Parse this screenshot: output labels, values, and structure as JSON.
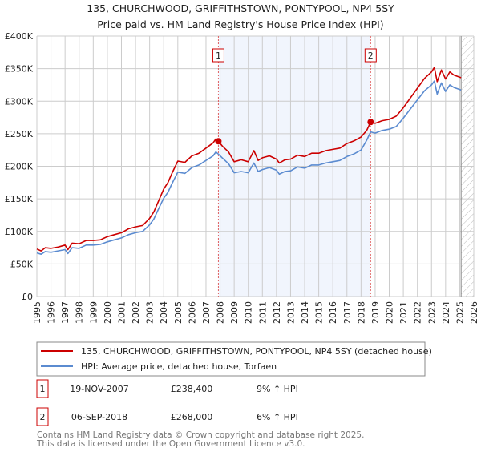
{
  "chart_data": {
    "type": "line",
    "title": "135, CHURCHWOOD, GRIFFITHSTOWN, PONTYPOOL, NP4 5SY",
    "subtitle": "Price paid vs. HM Land Registry's House Price Index (HPI)",
    "xlabel": "",
    "ylabel": "",
    "xlim": [
      1995,
      2026
    ],
    "ylim": [
      0,
      400000
    ],
    "grid": true,
    "y_ticks": [
      {
        "value": 0,
        "label": "£0"
      },
      {
        "value": 50000,
        "label": "£50K"
      },
      {
        "value": 100000,
        "label": "£100K"
      },
      {
        "value": 150000,
        "label": "£150K"
      },
      {
        "value": 200000,
        "label": "£200K"
      },
      {
        "value": 250000,
        "label": "£250K"
      },
      {
        "value": 300000,
        "label": "£300K"
      },
      {
        "value": 350000,
        "label": "£350K"
      },
      {
        "value": 400000,
        "label": "£400K"
      }
    ],
    "x_ticks": [
      "1995",
      "1996",
      "1997",
      "1998",
      "1999",
      "2000",
      "2001",
      "2002",
      "2003",
      "2004",
      "2005",
      "2006",
      "2007",
      "2008",
      "2009",
      "2010",
      "2011",
      "2012",
      "2013",
      "2014",
      "2015",
      "2016",
      "2017",
      "2018",
      "2019",
      "2020",
      "2021",
      "2022",
      "2023",
      "2024",
      "2025",
      "2026"
    ],
    "shaded_range": [
      2007.88,
      2018.68
    ],
    "forecast_hatch_from": 2025.1,
    "series": [
      {
        "name": "135, CHURCHWOOD, GRIFFITHSTOWN, PONTYPOOL, NP4 5SY (detached house)",
        "color": "#cc0000",
        "x": [
          1995,
          1995.3,
          1995.6,
          1996,
          1996.5,
          1997,
          1997.2,
          1997.5,
          1998,
          1998.5,
          1999,
          1999.5,
          2000,
          2000.5,
          2001,
          2001.5,
          2002,
          2002.5,
          2003,
          2003.3,
          2003.6,
          2004,
          2004.3,
          2004.6,
          2005,
          2005.5,
          2006,
          2006.5,
          2007,
          2007.5,
          2007.7,
          2007.88,
          2008.2,
          2008.6,
          2009,
          2009.5,
          2010,
          2010.4,
          2010.7,
          2011,
          2011.5,
          2012,
          2012.2,
          2012.6,
          2013,
          2013.5,
          2014,
          2014.5,
          2015,
          2015.5,
          2016,
          2016.5,
          2017,
          2017.5,
          2018,
          2018.4,
          2018.68,
          2019,
          2019.5,
          2020,
          2020.5,
          2021,
          2021.5,
          2022,
          2022.5,
          2023,
          2023.2,
          2023.4,
          2023.7,
          2024,
          2024.3,
          2024.6,
          2025,
          2025.1
        ],
        "y": [
          73000,
          70000,
          75000,
          74000,
          76000,
          79000,
          72000,
          82000,
          81000,
          86000,
          86000,
          87000,
          92000,
          95000,
          98000,
          104000,
          107000,
          109000,
          120000,
          130000,
          145000,
          165000,
          175000,
          190000,
          208000,
          206000,
          216000,
          220000,
          228000,
          236000,
          242000,
          238400,
          230000,
          222000,
          207000,
          210000,
          207000,
          224000,
          209000,
          213000,
          216000,
          211000,
          205000,
          210000,
          211000,
          217000,
          215000,
          220000,
          220000,
          224000,
          226000,
          228000,
          235000,
          239000,
          245000,
          255000,
          268000,
          266000,
          270000,
          272000,
          277000,
          290000,
          305000,
          320000,
          335000,
          345000,
          352000,
          330000,
          348000,
          334000,
          345000,
          340000,
          337000,
          336000
        ]
      },
      {
        "name": "HPI: Average price, detached house, Torfaen",
        "color": "#5b8bd0",
        "x": [
          1995,
          1995.3,
          1995.6,
          1996,
          1996.5,
          1997,
          1997.2,
          1997.5,
          1998,
          1998.5,
          1999,
          1999.5,
          2000,
          2000.5,
          2001,
          2001.5,
          2002,
          2002.5,
          2003,
          2003.3,
          2003.6,
          2004,
          2004.3,
          2004.6,
          2005,
          2005.5,
          2006,
          2006.5,
          2007,
          2007.5,
          2007.7,
          2007.88,
          2008.2,
          2008.6,
          2009,
          2009.5,
          2010,
          2010.4,
          2010.7,
          2011,
          2011.5,
          2012,
          2012.2,
          2012.6,
          2013,
          2013.5,
          2014,
          2014.5,
          2015,
          2015.5,
          2016,
          2016.5,
          2017,
          2017.5,
          2018,
          2018.4,
          2018.68,
          2019,
          2019.5,
          2020,
          2020.5,
          2021,
          2021.5,
          2022,
          2022.5,
          2023,
          2023.2,
          2023.4,
          2023.7,
          2024,
          2024.3,
          2024.6,
          2025,
          2025.1
        ],
        "y": [
          67000,
          65000,
          69000,
          68000,
          70000,
          72000,
          66000,
          75000,
          74000,
          79000,
          79000,
          80000,
          84000,
          87000,
          90000,
          95000,
          98000,
          100000,
          110000,
          119000,
          133000,
          151000,
          160000,
          174000,
          191000,
          189000,
          198000,
          202000,
          209000,
          216000,
          222000,
          218700,
          212000,
          204000,
          190000,
          192000,
          190000,
          205000,
          192000,
          195000,
          198000,
          194000,
          188000,
          192000,
          193000,
          199000,
          197000,
          202000,
          202000,
          205000,
          207000,
          209000,
          215000,
          219000,
          225000,
          240000,
          252800,
          251000,
          255000,
          257000,
          261000,
          274000,
          288000,
          302000,
          316000,
          325000,
          331000,
          311000,
          328000,
          315000,
          325000,
          321000,
          318000,
          317000
        ]
      }
    ],
    "markers": [
      {
        "label": "1",
        "x": 2007.88,
        "y": 238400
      },
      {
        "label": "2",
        "x": 2018.68,
        "y": 268000
      }
    ]
  },
  "transactions": [
    {
      "num": "1",
      "date": "19-NOV-2007",
      "price": "£238,400",
      "hpi": "9% ↑ HPI"
    },
    {
      "num": "2",
      "date": "06-SEP-2018",
      "price": "£268,000",
      "hpi": "6% ↑ HPI"
    }
  ],
  "footer": {
    "line1": "Contains HM Land Registry data © Crown copyright and database right 2025.",
    "line2": "This data is licensed under the Open Government Licence v3.0."
  }
}
